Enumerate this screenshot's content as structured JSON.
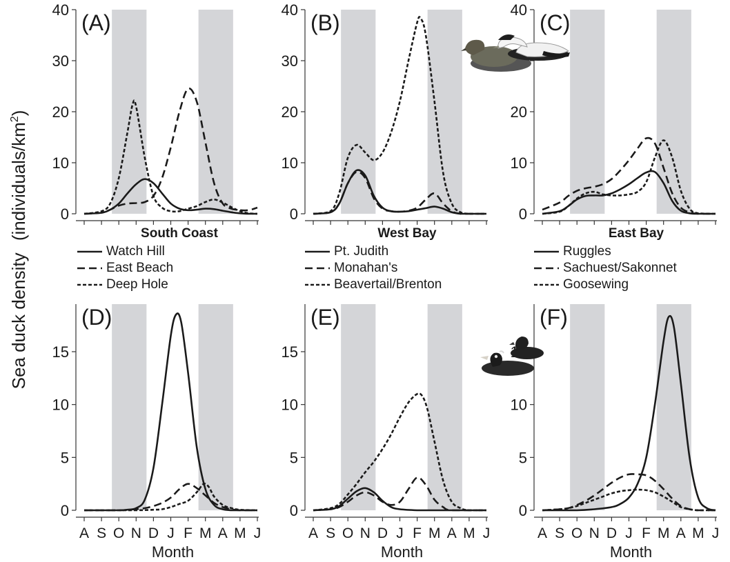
{
  "figure": {
    "ylabel": "Sea duck density",
    "ylabel_units_prefix": "(individuals/km",
    "ylabel_units_sup": "2",
    "ylabel_units_suffix": ")",
    "colors": {
      "line": "#1a1a1a",
      "shade": "#d4d5d8",
      "axis": "#333333"
    },
    "icons": [
      "common-eider-pair-icon",
      "scoter-pair-icon"
    ]
  },
  "chart_data": [
    {
      "type": "line",
      "panel_label": "(A)",
      "x": [
        "A",
        "S",
        "O",
        "N",
        "D",
        "J",
        "F",
        "M",
        "A",
        "M",
        "J"
      ],
      "ylim": [
        0,
        40
      ],
      "yticks": [
        0,
        10,
        20,
        30,
        40
      ],
      "xtick_labels_visible": false,
      "xlabel": "",
      "shaded_x_ranges": [
        [
          1.6,
          3.6
        ],
        [
          6.6,
          8.6
        ]
      ],
      "series": [
        {
          "name": "Watch Hill",
          "dash": "solid",
          "x": [
            0,
            1,
            1.5,
            2,
            2.5,
            3,
            3.5,
            4,
            4.5,
            5,
            5.5,
            6,
            6.5,
            7,
            7.5,
            8,
            8.5,
            9,
            9.5,
            10
          ],
          "values": [
            0,
            0.2,
            0.8,
            2,
            4,
            5.8,
            6.8,
            6,
            4,
            2,
            1,
            0.7,
            0.8,
            1,
            0.9,
            0.6,
            0.3,
            0.1,
            0,
            0
          ]
        },
        {
          "name": "East Beach",
          "dash": "dashed",
          "x": [
            0,
            1,
            1.5,
            2,
            2.5,
            3,
            3.5,
            4,
            4.5,
            5,
            5.5,
            6,
            6.5,
            7,
            7.5,
            8,
            8.5,
            9,
            9.5,
            10
          ],
          "values": [
            0,
            0.2,
            0.8,
            1.6,
            2,
            2.1,
            2.3,
            3.5,
            7,
            13,
            20,
            24.5,
            22,
            14,
            6,
            2,
            1,
            0.7,
            0.7,
            1.2
          ]
        },
        {
          "name": "Deep Hole",
          "dash": "dotted",
          "x": [
            0,
            1,
            1.5,
            2,
            2.5,
            2.8,
            3,
            3.5,
            4,
            4.5,
            5,
            5.5,
            6,
            6.5,
            7,
            7.5,
            8,
            8.5,
            9,
            9.5,
            10
          ],
          "values": [
            0,
            0.5,
            2,
            7,
            16,
            21.5,
            21,
            11,
            3.5,
            1.2,
            0.5,
            0.5,
            1,
            1.5,
            2.3,
            2.8,
            2.2,
            1.3,
            0.5,
            0.1,
            0
          ]
        }
      ],
      "legend": {
        "title": "South Coast",
        "entries": [
          "Watch Hill",
          "East Beach",
          "Deep Hole"
        ]
      }
    },
    {
      "type": "line",
      "panel_label": "(B)",
      "x": [
        "A",
        "S",
        "O",
        "N",
        "D",
        "J",
        "F",
        "M",
        "A",
        "M",
        "J"
      ],
      "ylim": [
        0,
        40
      ],
      "yticks": [
        0,
        10,
        20,
        30,
        40
      ],
      "xtick_labels_visible": false,
      "xlabel": "",
      "shaded_x_ranges": [
        [
          1.6,
          3.6
        ],
        [
          6.6,
          8.6
        ]
      ],
      "series": [
        {
          "name": "Pt. Judith",
          "dash": "solid",
          "x": [
            0,
            1,
            1.5,
            2,
            2.5,
            3,
            3.5,
            4,
            4.5,
            5,
            5.5,
            6,
            6.5,
            7,
            7.5,
            8,
            8.5,
            9,
            10
          ],
          "values": [
            0,
            0.3,
            2,
            6,
            8.5,
            7.5,
            3.5,
            1.2,
            0.5,
            0.4,
            0.5,
            0.8,
            1.1,
            1.4,
            1,
            0.3,
            0,
            0,
            0
          ]
        },
        {
          "name": "Monahan's",
          "dash": "dashed",
          "x": [
            0,
            1,
            1.5,
            2,
            2.5,
            3,
            3.5,
            4,
            4.5,
            5,
            5.5,
            6,
            6.5,
            7,
            7.5,
            8,
            8.5,
            9,
            10
          ],
          "values": [
            0,
            0.3,
            2,
            6,
            8.2,
            7,
            3,
            1,
            0.5,
            0.4,
            0.6,
            1.2,
            2.8,
            4,
            2,
            0.5,
            0,
            0,
            0
          ]
        },
        {
          "name": "Beavertail/Brenton",
          "dash": "dotted",
          "x": [
            0,
            1,
            1.5,
            2,
            2.5,
            3,
            3.5,
            4,
            4.5,
            5,
            5.5,
            6,
            6.2,
            6.5,
            7,
            7.5,
            8,
            8.5,
            9,
            10
          ],
          "values": [
            0,
            0.5,
            4,
            11,
            13.5,
            12,
            10.5,
            12,
            16,
            22,
            30,
            37.5,
            38.3,
            35,
            22,
            8,
            2,
            0.3,
            0,
            0
          ]
        }
      ],
      "legend": {
        "title": "West Bay",
        "entries": [
          "Pt. Judith",
          "Monahan's",
          "Beavertail/Brenton"
        ]
      }
    },
    {
      "type": "line",
      "panel_label": "(C)",
      "x": [
        "A",
        "S",
        "O",
        "N",
        "D",
        "J",
        "F",
        "M",
        "A",
        "M",
        "J"
      ],
      "ylim": [
        0,
        40
      ],
      "yticks": [
        0,
        10,
        20,
        30,
        40
      ],
      "xtick_labels_visible": false,
      "xlabel": "",
      "shaded_x_ranges": [
        [
          1.6,
          3.6
        ],
        [
          6.6,
          8.6
        ]
      ],
      "series": [
        {
          "name": "Ruggles",
          "dash": "solid",
          "x": [
            0,
            1,
            1.5,
            2,
            2.5,
            3,
            3.5,
            4,
            4.5,
            5,
            5.5,
            6,
            6.5,
            7,
            7.5,
            8,
            8.5,
            9,
            10
          ],
          "values": [
            0,
            0.5,
            1.5,
            2.8,
            3.5,
            3.6,
            3.6,
            4,
            4.8,
            5.8,
            7,
            8.1,
            8.2,
            6,
            2.5,
            0.6,
            0.1,
            0,
            0
          ]
        },
        {
          "name": "Sachuest/Sakonnet",
          "dash": "dashed",
          "x": [
            0,
            1,
            1.5,
            2,
            2.5,
            3,
            3.5,
            4,
            4.5,
            5,
            5.5,
            6,
            6.5,
            7,
            7.5,
            8,
            8.5,
            9,
            10
          ],
          "values": [
            0.8,
            2.2,
            3.5,
            4.5,
            5,
            5.3,
            5.8,
            6.8,
            8.5,
            10.5,
            12.8,
            14.8,
            13.8,
            9,
            4,
            1.2,
            0.3,
            0,
            0
          ]
        },
        {
          "name": "Goosewing",
          "dash": "dotted",
          "x": [
            0,
            1,
            1.5,
            2,
            2.5,
            3,
            3.5,
            4,
            4.5,
            5,
            5.5,
            6,
            6.5,
            7,
            7.5,
            8,
            8.5,
            9,
            10
          ],
          "values": [
            0,
            0.4,
            1.5,
            3,
            4,
            4.3,
            3.8,
            3.6,
            3.6,
            3.8,
            4.3,
            6.2,
            11,
            14.4,
            11,
            4.5,
            1,
            0.1,
            0
          ]
        }
      ],
      "legend": {
        "title": "East Bay",
        "entries": [
          "Ruggles",
          "Sachuest/Sakonnet",
          "Goosewing"
        ]
      }
    },
    {
      "type": "line",
      "panel_label": "(D)",
      "x": [
        "A",
        "S",
        "O",
        "N",
        "D",
        "J",
        "F",
        "M",
        "A",
        "M",
        "J"
      ],
      "ylim": [
        0,
        19.5
      ],
      "yticks": [
        0,
        5,
        10,
        15
      ],
      "xtick_labels_visible": true,
      "xlabel": "Month",
      "shaded_x_ranges": [
        [
          1.6,
          3.6
        ],
        [
          6.6,
          8.6
        ]
      ],
      "series": [
        {
          "name": "Watch Hill",
          "dash": "solid",
          "x": [
            0,
            2,
            2.5,
            3,
            3.5,
            4,
            4.5,
            5,
            5.3,
            5.6,
            6,
            6.5,
            7,
            7.5,
            8,
            8.5,
            9,
            10
          ],
          "values": [
            0,
            0,
            0.05,
            0.2,
            1,
            4,
            10,
            16.5,
            18.5,
            17.8,
            13,
            6,
            2,
            0.5,
            0.1,
            0,
            0,
            0
          ]
        },
        {
          "name": "East Beach",
          "dash": "dashed",
          "x": [
            0,
            2,
            2.5,
            3,
            3.5,
            4,
            4.5,
            5,
            5.5,
            6,
            6.5,
            7,
            7.5,
            8,
            8.5,
            9,
            10
          ],
          "values": [
            0,
            0,
            0.05,
            0.1,
            0.2,
            0.4,
            0.7,
            1.2,
            2,
            2.5,
            2.1,
            1.4,
            0.7,
            0.3,
            0.1,
            0,
            0
          ]
        },
        {
          "name": "Deep Hole",
          "dash": "dotted",
          "x": [
            0,
            2,
            2.5,
            3,
            3.5,
            4,
            4.5,
            5,
            5.5,
            6,
            6.5,
            6.9,
            7.2,
            7.5,
            8,
            8.5,
            9,
            10
          ],
          "values": [
            0,
            0,
            0,
            0,
            0.02,
            0.05,
            0.1,
            0.3,
            0.6,
            0.9,
            1.7,
            2.5,
            2.2,
            1.3,
            0.5,
            0.2,
            0.05,
            0
          ]
        }
      ]
    },
    {
      "type": "line",
      "panel_label": "(E)",
      "x": [
        "A",
        "S",
        "O",
        "N",
        "D",
        "J",
        "F",
        "M",
        "A",
        "M",
        "J"
      ],
      "ylim": [
        0,
        19.5
      ],
      "yticks": [
        0,
        5,
        10,
        15
      ],
      "xtick_labels_visible": true,
      "xlabel": "Month",
      "shaded_x_ranges": [
        [
          1.6,
          3.6
        ],
        [
          6.6,
          8.6
        ]
      ],
      "series": [
        {
          "name": "Pt. Judith",
          "dash": "solid",
          "x": [
            0,
            1,
            1.5,
            2,
            2.5,
            3,
            3.5,
            4,
            4.5,
            5,
            6,
            7,
            8,
            10
          ],
          "values": [
            0,
            0.1,
            0.4,
            1.1,
            1.8,
            2.1,
            1.7,
            0.9,
            0.3,
            0.1,
            0,
            0,
            0,
            0
          ]
        },
        {
          "name": "Monahan's",
          "dash": "dashed",
          "x": [
            0,
            1,
            1.5,
            2,
            2.5,
            3,
            3.5,
            4,
            4.5,
            5,
            5.5,
            6,
            6.5,
            7,
            7.5,
            8,
            10
          ],
          "values": [
            0,
            0.1,
            0.3,
            0.8,
            1.4,
            1.7,
            1.4,
            0.8,
            0.5,
            0.8,
            2,
            3.1,
            2.4,
            1,
            0.3,
            0,
            0
          ]
        },
        {
          "name": "Beavertail/Brenton",
          "dash": "dotted",
          "x": [
            0,
            1,
            1.5,
            2,
            2.5,
            3,
            3.5,
            4,
            4.5,
            5,
            5.5,
            6,
            6.3,
            6.6,
            7,
            7.5,
            8,
            8.5,
            9,
            10
          ],
          "values": [
            0,
            0.2,
            0.6,
            1.5,
            2.5,
            3.6,
            4.6,
            5.8,
            7.2,
            8.8,
            10.2,
            11,
            10.8,
            9.5,
            6.5,
            2.8,
            0.8,
            0.2,
            0,
            0
          ]
        }
      ]
    },
    {
      "type": "line",
      "panel_label": "(F)",
      "x": [
        "A",
        "S",
        "O",
        "N",
        "D",
        "J",
        "F",
        "M",
        "A",
        "M",
        "J"
      ],
      "ylim": [
        0,
        19.5
      ],
      "yticks": [
        0,
        5,
        10,
        15
      ],
      "xtick_labels_visible": true,
      "xlabel": "Month",
      "shaded_x_ranges": [
        [
          1.6,
          3.6
        ],
        [
          6.6,
          8.6
        ]
      ],
      "series": [
        {
          "name": "Ruggles",
          "dash": "solid",
          "x": [
            0,
            2,
            3,
            4,
            4.5,
            5,
            5.5,
            6,
            6.5,
            7,
            7.3,
            7.6,
            8,
            8.5,
            9,
            9.5,
            10
          ],
          "values": [
            0,
            0,
            0.1,
            0.3,
            0.6,
            1.2,
            2.5,
            5,
            10,
            16,
            18.3,
            17.3,
            12,
            5,
            1.2,
            0.2,
            0
          ]
        },
        {
          "name": "Sachuest/Sakonnet",
          "dash": "dashed",
          "x": [
            0,
            1,
            1.5,
            2,
            2.5,
            3,
            3.5,
            4,
            4.5,
            5,
            5.5,
            6,
            6.5,
            7,
            7.5,
            8,
            8.5,
            9,
            10
          ],
          "values": [
            0,
            0.1,
            0.2,
            0.5,
            0.9,
            1.4,
            2,
            2.6,
            3.1,
            3.4,
            3.4,
            3.3,
            2.8,
            2,
            1.1,
            0.4,
            0.1,
            0,
            0
          ]
        },
        {
          "name": "Goosewing",
          "dash": "dotted",
          "x": [
            0,
            1,
            1.5,
            2,
            2.5,
            3,
            3.5,
            4,
            4.5,
            5,
            5.5,
            6,
            6.5,
            7,
            7.5,
            8,
            8.5,
            9,
            10
          ],
          "values": [
            0,
            0.1,
            0.2,
            0.4,
            0.7,
            1,
            1.3,
            1.6,
            1.8,
            1.9,
            1.95,
            1.9,
            1.7,
            1.3,
            0.8,
            0.3,
            0.1,
            0,
            0
          ]
        }
      ]
    }
  ]
}
